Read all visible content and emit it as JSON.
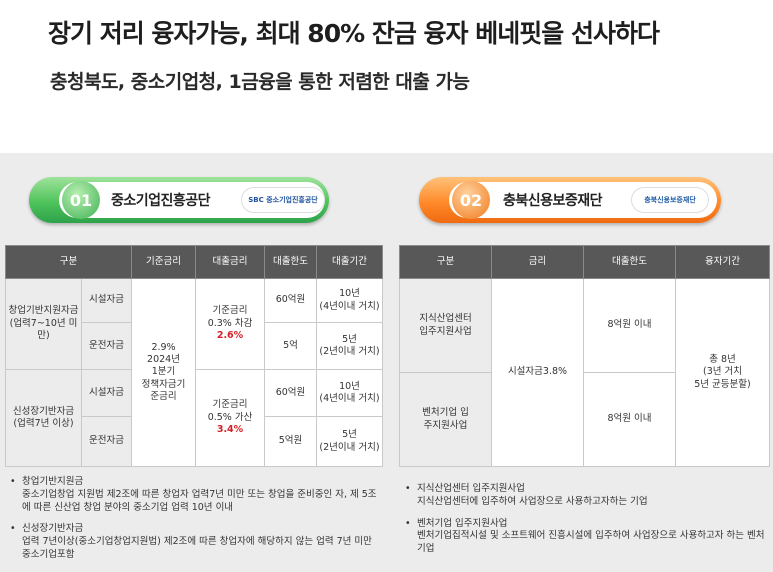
{
  "title": "장기 저리 융자가능, 최대 80% 잔금 융자 베네핏을 선사하다",
  "subtitle": "충청북도, 중소기업청, 1금융을 통한 저렴한 대출 가능",
  "left_section": {
    "number": "01",
    "label": "중소기업진흥공단",
    "logo_text": "SBC 중소기업진흥공단",
    "table": {
      "headers": [
        "구분",
        "기준금리",
        "대출금리",
        "대출한도",
        "대출기간"
      ],
      "group1": "창업기반지원자금 (업력7~10년 미만)",
      "group2": "신성장기반자금 (업력7년 이상)",
      "facility": "시설자금",
      "operating": "운전자금",
      "base_rate": [
        "2.9%",
        "2024년",
        "1분기",
        "정책자금기",
        "준금리"
      ],
      "rate1": [
        "기준금리",
        "0.3% 차감"
      ],
      "rate1_value": "2.6%",
      "rate2": [
        "기준금리",
        "0.5% 가산"
      ],
      "rate2_value": "3.4%",
      "limit1": "60억원",
      "limit2": "5억",
      "limit3": "60억원",
      "limit4": "5억원",
      "period1": [
        "10년",
        "(4년이내 거치)"
      ],
      "period2": [
        "5년",
        "(2년이내 거치)"
      ],
      "period3": [
        "10년",
        "(4년이내 거치)"
      ],
      "period4": [
        "5년",
        "(2년이내 거치)"
      ]
    },
    "notes": [
      {
        "head": "창업기반지원금",
        "body": "중소기업창업 지원법 제2조에 따른 창업자 업력7년 미만 또는 창업을 준비중인 자, 제 5조에 따른 신산업 창업 분야의 중소기업 업력 10년 이내"
      },
      {
        "head": "신성장기반자금",
        "body": "업력 7년이상(중소기업창업지원법) 제2조에 따른 창업자에 해당하지 않는 업력 7년 미만 중소기업포함"
      }
    ]
  },
  "right_section": {
    "number": "02",
    "label": "충북신용보증재단",
    "logo_text": "충북신용보증재단",
    "table": {
      "headers": [
        "구분",
        "금리",
        "대출한도",
        "융자기간"
      ],
      "row1": [
        "지식산업센터",
        "입주지원사업"
      ],
      "row2": [
        "벤처기업 입",
        "주지원사업"
      ],
      "rate": "시설자금3.8%",
      "limit1": "8억원 이내",
      "limit2": "8억원 이내",
      "period": [
        "총 8년",
        "(3년 거치",
        "5년 균등분할)"
      ]
    },
    "notes": [
      {
        "head": "지식산업센터 입주지원사업",
        "body": "지식산업센터에 입주하여 사업장으로 사용하고자하는 기업"
      },
      {
        "head": "벤처기업 입주지원사업",
        "body": "벤처기업집적시설 및 소프트웨어 진흥시설에 입주하여 사업장으로 사용하고자 하는 벤처기업"
      }
    ]
  },
  "colors": {
    "green": "#4fc35b",
    "orange": "#ff8a2a",
    "header_gray": "#585858",
    "highlight_red": "#d61f26"
  }
}
